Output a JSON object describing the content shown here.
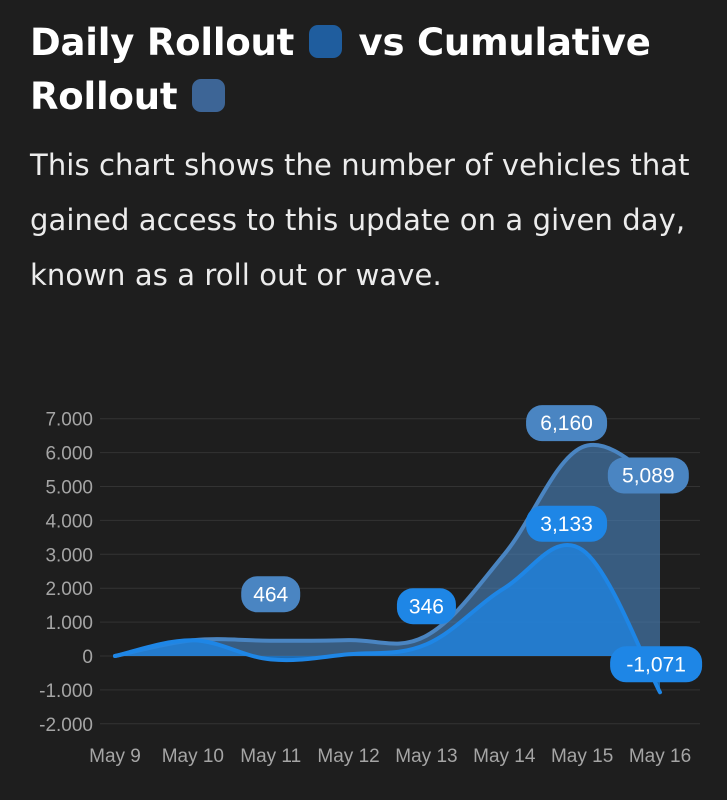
{
  "header": {
    "title_part1": "Daily Rollout",
    "title_part2": "vs Cumulative Rollout",
    "subtitle": "This chart shows the number of vehicles that gained access to this update on a given day, known as a roll out or wave."
  },
  "colors": {
    "background": "#1e1e1e",
    "daily": "#1e86e6",
    "cumulative": "#4a85c2",
    "daily_swatch": "#1f5d9e",
    "cumulative_swatch": "#3d6596",
    "grid": "#333333",
    "tick_text": "#a5a5a5"
  },
  "chart_data": {
    "type": "area",
    "categories": [
      "May 9",
      "May 10",
      "May 11",
      "May 12",
      "May 13",
      "May 14",
      "May 15",
      "May 16"
    ],
    "series": [
      {
        "name": "Daily Rollout",
        "values": [
          0,
          464,
          -100,
          50,
          346,
          2000,
          3133,
          -1071
        ],
        "labels": [
          {
            "index": 5.8,
            "text": "3,133"
          },
          {
            "index": 7,
            "text": "-1,071"
          }
        ]
      },
      {
        "name": "Cumulative Rollout",
        "values": [
          0,
          464,
          450,
          470,
          600,
          3000,
          6160,
          5089
        ],
        "labels": [
          {
            "index": 2,
            "text": "464"
          },
          {
            "index": 4,
            "text": "346"
          },
          {
            "index": 5.8,
            "text": "6,160"
          },
          {
            "index": 7,
            "text": "5,089"
          }
        ]
      }
    ],
    "y_ticks": [
      "7.000",
      "6.000",
      "5.000",
      "4.000",
      "3.000",
      "2.000",
      "1.000",
      "0",
      "-1.000",
      "-2.000"
    ],
    "y_tick_values": [
      7000,
      6000,
      5000,
      4000,
      3000,
      2000,
      1000,
      0,
      -1000,
      -2000
    ],
    "ylim": [
      -2000,
      7000
    ],
    "grid": true,
    "legend": "inline-title"
  }
}
